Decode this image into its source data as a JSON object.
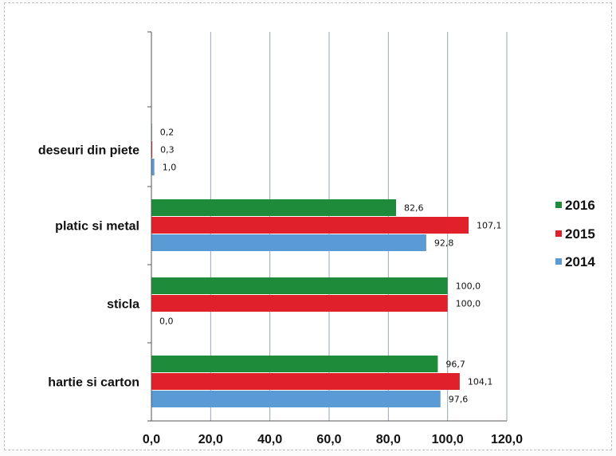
{
  "chart_data": {
    "type": "bar",
    "orientation": "horizontal",
    "categories": [
      "deseuri din piete",
      "platic si metal",
      "sticla",
      "hartie si carton"
    ],
    "series": [
      {
        "name": "2016",
        "color": "#1e8b3a",
        "values": [
          0.2,
          82.6,
          100.0,
          96.7
        ],
        "labels": [
          "0,2",
          "82,6",
          "100,0",
          "96,7"
        ]
      },
      {
        "name": "2015",
        "color": "#e0202b",
        "values": [
          0.3,
          107.1,
          100.0,
          104.1
        ],
        "labels": [
          "0,3",
          "107,1",
          "100,0",
          "104,1"
        ]
      },
      {
        "name": "2014",
        "color": "#5b9bd5",
        "values": [
          1.0,
          92.8,
          0.0,
          97.6
        ],
        "labels": [
          "1,0",
          "92,8",
          "0,0",
          "97,6"
        ]
      }
    ],
    "xlim": [
      0,
      120
    ],
    "xticks": [
      0,
      20,
      40,
      60,
      80,
      100,
      120
    ],
    "xtick_labels": [
      "0,0",
      "20,0",
      "40,0",
      "60,0",
      "80,0",
      "100,0",
      "120,0"
    ],
    "grid": "vertical",
    "legend": {
      "position": "right",
      "entries": [
        "2016",
        "2015",
        "2014"
      ]
    }
  }
}
